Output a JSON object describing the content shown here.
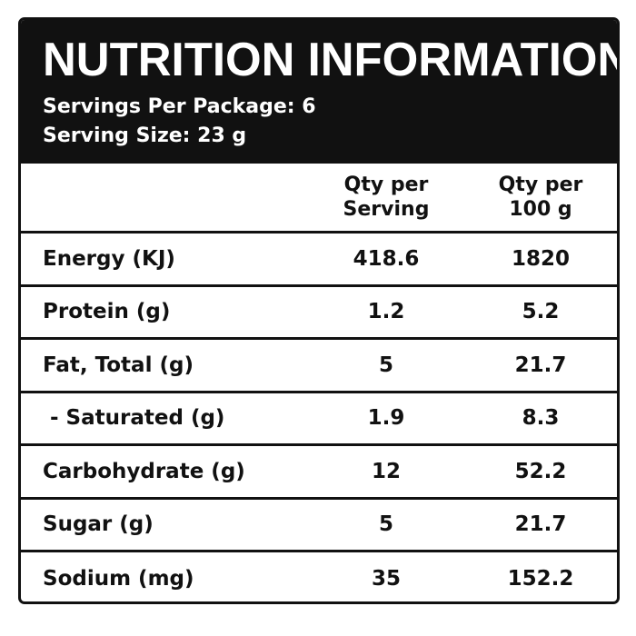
{
  "header": {
    "title": "NUTRITION INFORMATION",
    "servings_per_package": "Servings Per Package: 6",
    "serving_size": "Serving Size: 23 g"
  },
  "columns": {
    "per_serving_line1": "Qty per",
    "per_serving_line2": "Serving",
    "per_100g_line1": "Qty per",
    "per_100g_line2": "100 g"
  },
  "rows": [
    {
      "name": "Energy (KJ)",
      "per_serving": "418.6",
      "per_100g": "1820"
    },
    {
      "name": "Protein (g)",
      "per_serving": "1.2",
      "per_100g": "5.2"
    },
    {
      "name": "Fat, Total (g)",
      "per_serving": "5",
      "per_100g": "21.7"
    },
    {
      "name": " - Saturated (g)",
      "per_serving": "1.9",
      "per_100g": "8.3"
    },
    {
      "name": "Carbohydrate (g)",
      "per_serving": "12",
      "per_100g": "52.2"
    },
    {
      "name": "Sugar (g)",
      "per_serving": "5",
      "per_100g": "21.7"
    },
    {
      "name": "Sodium (mg)",
      "per_serving": "35",
      "per_100g": "152.2"
    }
  ]
}
